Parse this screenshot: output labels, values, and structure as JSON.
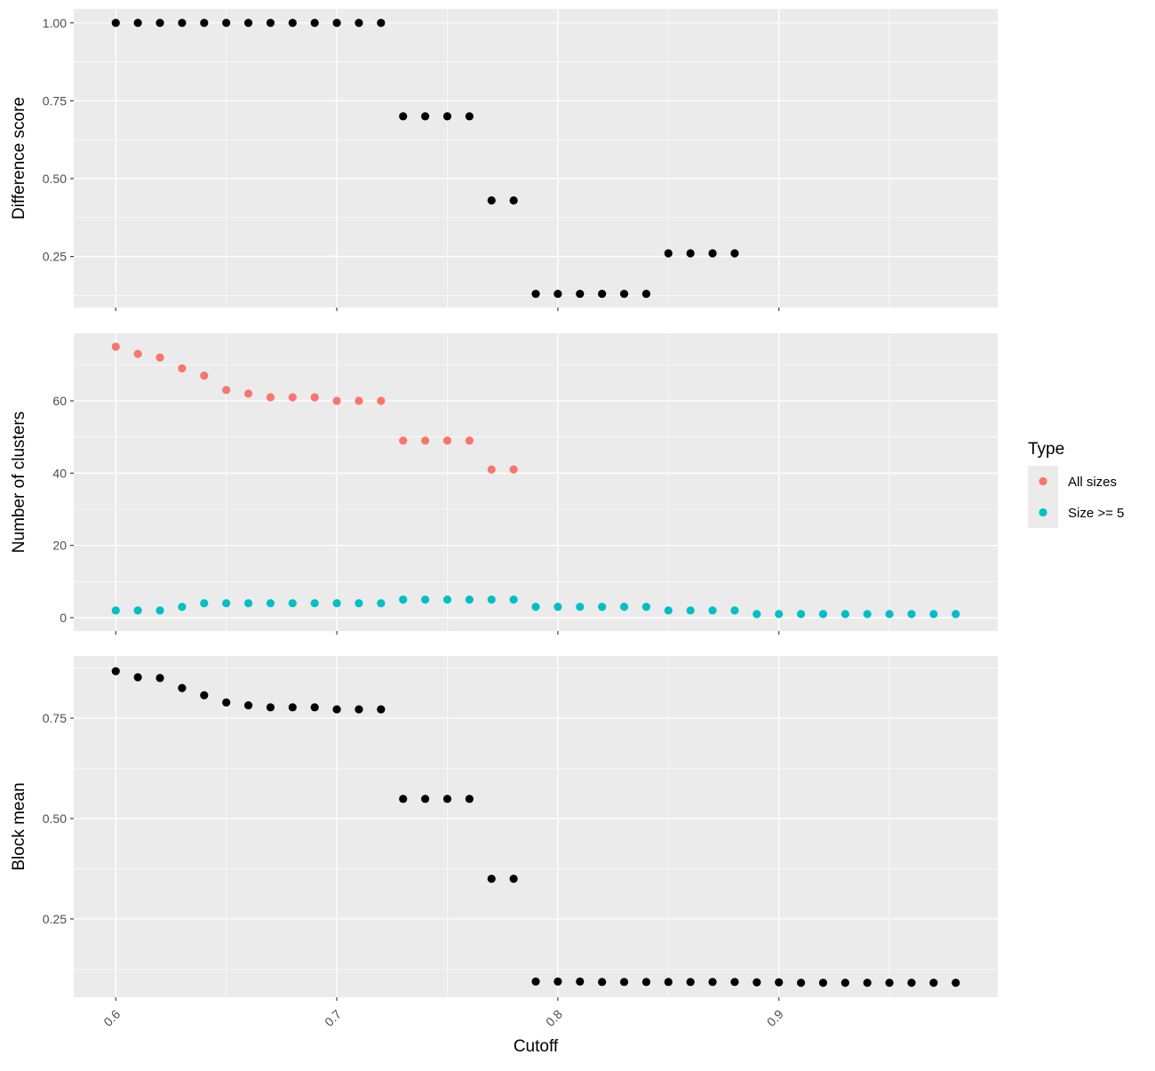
{
  "chart_data": {
    "type": "scatter",
    "xlabel": "Cutoff",
    "xlim": [
      0.581,
      0.999
    ],
    "x_ticks": [
      0.6,
      0.7,
      0.8,
      0.9
    ],
    "x_tick_labels": [
      "0.6",
      "0.7",
      "0.8",
      "0.9"
    ],
    "x_tick_label_rotation": "45deg",
    "grid": true,
    "panels": [
      {
        "ylabel": "Difference score",
        "ylim": [
          0.086,
          1.045
        ],
        "y_ticks": [
          0.25,
          0.5,
          0.75,
          1.0
        ],
        "y_tick_labels": [
          "0.25",
          "0.50",
          "0.75",
          "1.00"
        ],
        "series": [
          {
            "color": "#000000",
            "x": [
              0.6,
              0.61,
              0.62,
              0.63,
              0.64,
              0.65,
              0.66,
              0.67,
              0.68,
              0.69,
              0.7,
              0.71,
              0.72,
              0.73,
              0.74,
              0.75,
              0.76,
              0.77,
              0.78,
              0.79,
              0.8,
              0.81,
              0.82,
              0.83,
              0.84,
              0.85,
              0.86,
              0.87,
              0.88
            ],
            "y": [
              1.0,
              1.0,
              1.0,
              1.0,
              1.0,
              1.0,
              1.0,
              1.0,
              1.0,
              1.0,
              1.0,
              1.0,
              1.0,
              0.7,
              0.7,
              0.7,
              0.7,
              0.43,
              0.43,
              0.13,
              0.13,
              0.13,
              0.13,
              0.13,
              0.13,
              0.26,
              0.26,
              0.26,
              0.26
            ]
          }
        ]
      },
      {
        "ylabel": "Number of clusters",
        "ylim": [
          -3.7,
          78.7
        ],
        "y_ticks": [
          0,
          20,
          40,
          60
        ],
        "y_tick_labels": [
          "0",
          "20",
          "40",
          "60"
        ],
        "series": [
          {
            "name": "All sizes",
            "color": "#F8766D",
            "x": [
              0.6,
              0.61,
              0.62,
              0.63,
              0.64,
              0.65,
              0.66,
              0.67,
              0.68,
              0.69,
              0.7,
              0.71,
              0.72,
              0.73,
              0.74,
              0.75,
              0.76,
              0.77,
              0.78
            ],
            "y": [
              75,
              73,
              72,
              69,
              67,
              63,
              62,
              61,
              61,
              61,
              60,
              60,
              60,
              49,
              49,
              49,
              49,
              41,
              41
            ]
          },
          {
            "name": "Size >= 5",
            "color": "#00BFC4",
            "x": [
              0.6,
              0.61,
              0.62,
              0.63,
              0.64,
              0.65,
              0.66,
              0.67,
              0.68,
              0.69,
              0.7,
              0.71,
              0.72,
              0.73,
              0.74,
              0.75,
              0.76,
              0.77,
              0.78,
              0.79,
              0.8,
              0.81,
              0.82,
              0.83,
              0.84,
              0.85,
              0.86,
              0.87,
              0.88,
              0.89,
              0.9,
              0.91,
              0.92,
              0.93,
              0.94,
              0.95,
              0.96,
              0.97,
              0.98
            ],
            "y": [
              2,
              2,
              2,
              3,
              4,
              4,
              4,
              4,
              4,
              4,
              4,
              4,
              4,
              5,
              5,
              5,
              5,
              5,
              5,
              3,
              3,
              3,
              3,
              3,
              3,
              2,
              2,
              2,
              2,
              1,
              1,
              1,
              1,
              1,
              1,
              1,
              1,
              1,
              1
            ]
          }
        ]
      },
      {
        "ylabel": "Block mean",
        "ylim": [
          0.055,
          0.905
        ],
        "y_ticks": [
          0.25,
          0.5,
          0.75
        ],
        "y_tick_labels": [
          "0.25",
          "0.50",
          "0.75"
        ],
        "series": [
          {
            "color": "#000000",
            "x": [
              0.6,
              0.61,
              0.62,
              0.63,
              0.64,
              0.65,
              0.66,
              0.67,
              0.68,
              0.69,
              0.7,
              0.71,
              0.72,
              0.73,
              0.74,
              0.75,
              0.76,
              0.77,
              0.78,
              0.79,
              0.8,
              0.81,
              0.82,
              0.83,
              0.84,
              0.85,
              0.86,
              0.87,
              0.88,
              0.89,
              0.9,
              0.91,
              0.92,
              0.93,
              0.94,
              0.95,
              0.96,
              0.97,
              0.98
            ],
            "y": [
              0.867,
              0.852,
              0.85,
              0.825,
              0.807,
              0.789,
              0.782,
              0.777,
              0.777,
              0.777,
              0.772,
              0.772,
              0.772,
              0.549,
              0.549,
              0.549,
              0.549,
              0.35,
              0.35,
              0.094,
              0.094,
              0.094,
              0.093,
              0.093,
              0.093,
              0.093,
              0.093,
              0.093,
              0.093,
              0.092,
              0.092,
              0.091,
              0.091,
              0.091,
              0.091,
              0.091,
              0.091,
              0.091,
              0.091
            ]
          }
        ]
      }
    ],
    "legend": {
      "title": "Type",
      "placement": "right",
      "entries": [
        {
          "label": "All sizes",
          "color": "#F8766D"
        },
        {
          "label": "Size >= 5",
          "color": "#00BFC4"
        }
      ]
    }
  }
}
